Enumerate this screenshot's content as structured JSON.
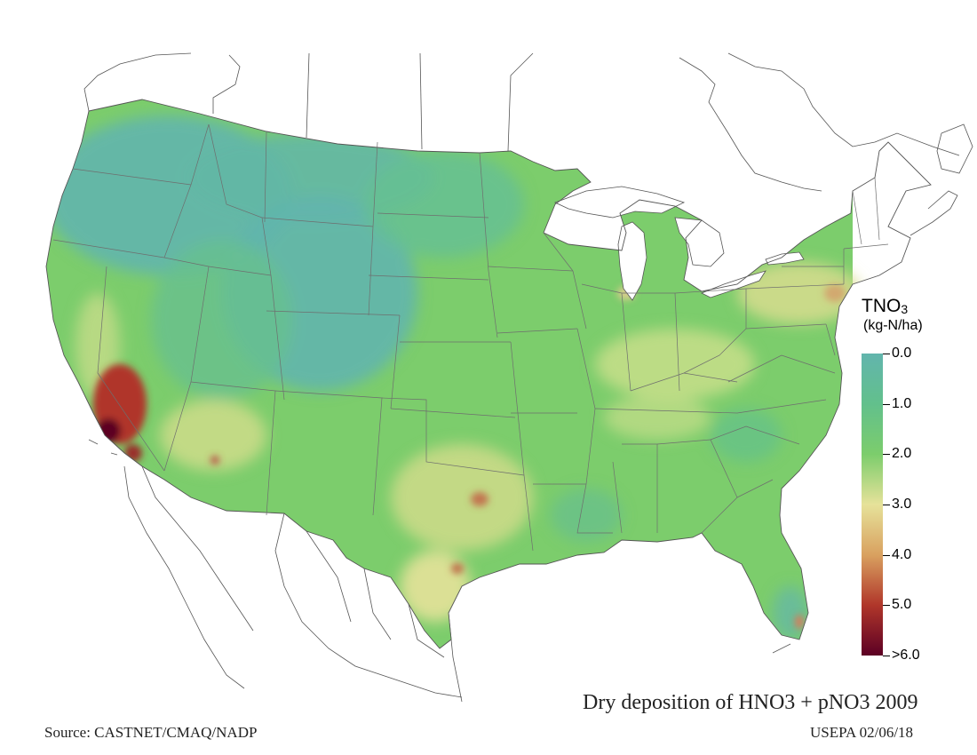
{
  "map": {
    "title": "Dry deposition of HNO3 + pNO3 2009",
    "source": "Source: CASTNET/CMAQ/NADP",
    "credit": "USEPA 02/06/18",
    "variable": "TNO",
    "variable_subscript": "3",
    "units": "(kg-N/ha)",
    "base_color": "#6ec97a",
    "water_color": "#ffffff",
    "border_color": "#7a7a7a"
  },
  "legend": {
    "ticks": [
      {
        "value": 0.0,
        "label": "0.0"
      },
      {
        "value": 1.0,
        "label": "1.0"
      },
      {
        "value": 2.0,
        "label": "2.0"
      },
      {
        "value": 3.0,
        "label": "3.0"
      },
      {
        "value": 4.0,
        "label": "4.0"
      },
      {
        "value": 5.0,
        "label": "5.0"
      },
      {
        "value": 6.0,
        "label": ">6.0"
      }
    ],
    "colors": [
      {
        "value": 0.0,
        "color": "#62b5ad"
      },
      {
        "value": 1.0,
        "color": "#62c08c"
      },
      {
        "value": 2.0,
        "color": "#7ccd6c"
      },
      {
        "value": 3.0,
        "color": "#e6e29a"
      },
      {
        "value": 4.0,
        "color": "#d9a160"
      },
      {
        "value": 5.0,
        "color": "#b0362a"
      },
      {
        "value": 6.0,
        "color": "#5c0024"
      }
    ]
  }
}
